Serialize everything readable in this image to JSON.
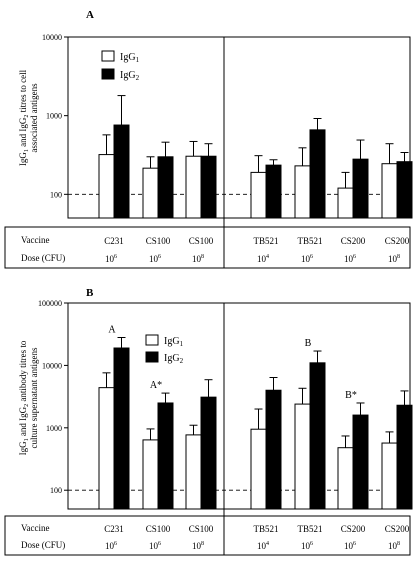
{
  "chart_data": [
    {
      "type": "bar",
      "panel_label": "A",
      "ylabel": "IgG1 and IgG2 titres to cell associated antigens",
      "ylabel_main": "IgG",
      "ylabel_sub1": "1",
      "ylabel_mid": " and IgG",
      "ylabel_sub2": "2",
      "ylabel_line1_rest": " titres to cell",
      "ylabel_line2": "associated antigens",
      "scale": "log",
      "ylim": [
        50,
        10000
      ],
      "yticks": [
        100,
        1000,
        10000
      ],
      "ytick_labels": [
        "100",
        "1000",
        "10000"
      ],
      "reference_line": 100,
      "categories": [
        "C231",
        "CS100",
        "CS100",
        "TB521",
        "TB521",
        "CS200",
        "CS200"
      ],
      "doses": [
        {
          "base": "10",
          "exp": "6"
        },
        {
          "base": "10",
          "exp": "6"
        },
        {
          "base": "10",
          "exp": "8"
        },
        {
          "base": "10",
          "exp": "4"
        },
        {
          "base": "10",
          "exp": "6"
        },
        {
          "base": "10",
          "exp": "6"
        },
        {
          "base": "10",
          "exp": "8"
        }
      ],
      "row_labels": {
        "vaccine": "Vaccine",
        "dose": "Dose (CFU)"
      },
      "legend": {
        "igg1": {
          "base": "IgG",
          "sub": "1"
        },
        "igg2": {
          "base": "IgG",
          "sub": "2"
        }
      },
      "series": [
        {
          "name": "IgG1",
          "fill": "#ffffff",
          "values": [
            320,
            215,
            305,
            190,
            230,
            120,
            245
          ],
          "errors": [
            570,
            300,
            470,
            310,
            390,
            190,
            440
          ]
        },
        {
          "name": "IgG2",
          "fill": "#000000",
          "values": [
            760,
            300,
            305,
            235,
            660,
            280,
            260
          ],
          "errors": [
            1800,
            460,
            440,
            275,
            920,
            490,
            340
          ]
        }
      ],
      "annotations": []
    },
    {
      "type": "bar",
      "panel_label": "B",
      "ylabel": "IgG1 and IgG2 antibody titres to culture supernatant antigens",
      "ylabel_main": "IgG",
      "ylabel_sub1": "1",
      "ylabel_mid": " and IgG",
      "ylabel_sub2": "2",
      "ylabel_line1_rest": " antibody titres to",
      "ylabel_line2": "culture supernatant antigens",
      "scale": "log",
      "ylim": [
        50,
        100000
      ],
      "yticks": [
        100,
        1000,
        10000,
        100000
      ],
      "ytick_labels": [
        "100",
        "1000",
        "10000",
        "100000"
      ],
      "reference_line": 100,
      "categories": [
        "C231",
        "CS100",
        "CS100",
        "TB521",
        "TB521",
        "CS200",
        "CS200"
      ],
      "doses": [
        {
          "base": "10",
          "exp": "6"
        },
        {
          "base": "10",
          "exp": "6"
        },
        {
          "base": "10",
          "exp": "8"
        },
        {
          "base": "10",
          "exp": "4"
        },
        {
          "base": "10",
          "exp": "6"
        },
        {
          "base": "10",
          "exp": "6"
        },
        {
          "base": "10",
          "exp": "8"
        }
      ],
      "row_labels": {
        "vaccine": "Vaccine",
        "dose": "Dose (CFU)"
      },
      "legend": {
        "igg1": {
          "base": "IgG",
          "sub": "1"
        },
        "igg2": {
          "base": "IgG",
          "sub": "2"
        }
      },
      "series": [
        {
          "name": "IgG1",
          "fill": "#ffffff",
          "values": [
            4400,
            640,
            770,
            950,
            2400,
            480,
            570
          ],
          "errors": [
            7600,
            960,
            1100,
            2000,
            4300,
            740,
            860
          ]
        },
        {
          "name": "IgG2",
          "fill": "#000000",
          "values": [
            19000,
            2500,
            3100,
            4000,
            11000,
            1600,
            2300
          ],
          "errors": [
            28000,
            3600,
            5900,
            6400,
            17000,
            2500,
            3900
          ]
        }
      ],
      "annotations": [
        {
          "category_index": 0,
          "text": "A"
        },
        {
          "category_index": 1,
          "text": "A*"
        },
        {
          "category_index": 4,
          "text": "B"
        },
        {
          "category_index": 5,
          "text": "B*"
        }
      ]
    }
  ]
}
